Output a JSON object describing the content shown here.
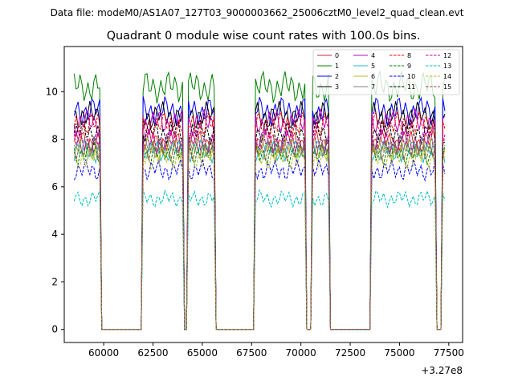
{
  "suptitle": "Data file: modeM0/AS1A07_127T03_9000003662_25006cztM0_level2_quad_clean.evt",
  "chart_data": {
    "type": "line",
    "title": "Quadrant 0 module wise count rates with 100.0s bins.",
    "xlabel": "",
    "ylabel": "",
    "x_offset_label": "+3.27e8",
    "xlim": [
      58000,
      78200
    ],
    "ylim": [
      -0.55,
      11.9
    ],
    "x_ticks": [
      60000,
      62500,
      65000,
      67500,
      70000,
      72500,
      75000,
      77500
    ],
    "x_tick_labels": [
      "60000",
      "62500",
      "65000",
      "67500",
      "70000",
      "72500",
      "75000",
      "77500"
    ],
    "y_ticks": [
      0,
      2,
      4,
      6,
      8,
      10
    ],
    "y_tick_labels": [
      "0",
      "2",
      "4",
      "6",
      "8",
      "10"
    ],
    "legend_position": "top-right",
    "good_time_intervals": [
      [
        58500,
        59800
      ],
      [
        62000,
        64000
      ],
      [
        64300,
        65600
      ],
      [
        67700,
        70200
      ],
      [
        70600,
        71400
      ],
      [
        73600,
        76800
      ],
      [
        77200,
        77350
      ]
    ],
    "series": [
      {
        "name": "0",
        "base": 7.9,
        "color": "#d62728",
        "dash": "solid"
      },
      {
        "name": "1",
        "base": 10.2,
        "color": "#008000",
        "dash": "solid"
      },
      {
        "name": "2",
        "base": 9.2,
        "color": "#0000ff",
        "dash": "solid"
      },
      {
        "name": "3",
        "base": 9.0,
        "color": "#000000",
        "dash": "solid"
      },
      {
        "name": "4",
        "base": 8.7,
        "color": "#bf00bf",
        "dash": "solid"
      },
      {
        "name": "5",
        "base": 7.5,
        "color": "#17becf",
        "dash": "solid"
      },
      {
        "name": "6",
        "base": 7.6,
        "color": "#bcbd22",
        "dash": "solid"
      },
      {
        "name": "7",
        "base": 7.7,
        "color": "#7f7f7f",
        "dash": "solid"
      },
      {
        "name": "8",
        "base": 8.6,
        "color": "#ff0000",
        "dash": "dashed"
      },
      {
        "name": "9",
        "base": 7.4,
        "color": "#008000",
        "dash": "dashed"
      },
      {
        "name": "10",
        "base": 6.7,
        "color": "#0000ff",
        "dash": "dashed"
      },
      {
        "name": "11",
        "base": 8.3,
        "color": "#000000",
        "dash": "dashed"
      },
      {
        "name": "12",
        "base": 7.9,
        "color": "#bf00bf",
        "dash": "dashed"
      },
      {
        "name": "13",
        "base": 5.5,
        "color": "#00bfbf",
        "dash": "dashed"
      },
      {
        "name": "14",
        "base": 7.2,
        "color": "#bcbd22",
        "dash": "dashed"
      },
      {
        "name": "15",
        "base": 7.6,
        "color": "#8c564b",
        "dash": "dashed"
      }
    ]
  }
}
